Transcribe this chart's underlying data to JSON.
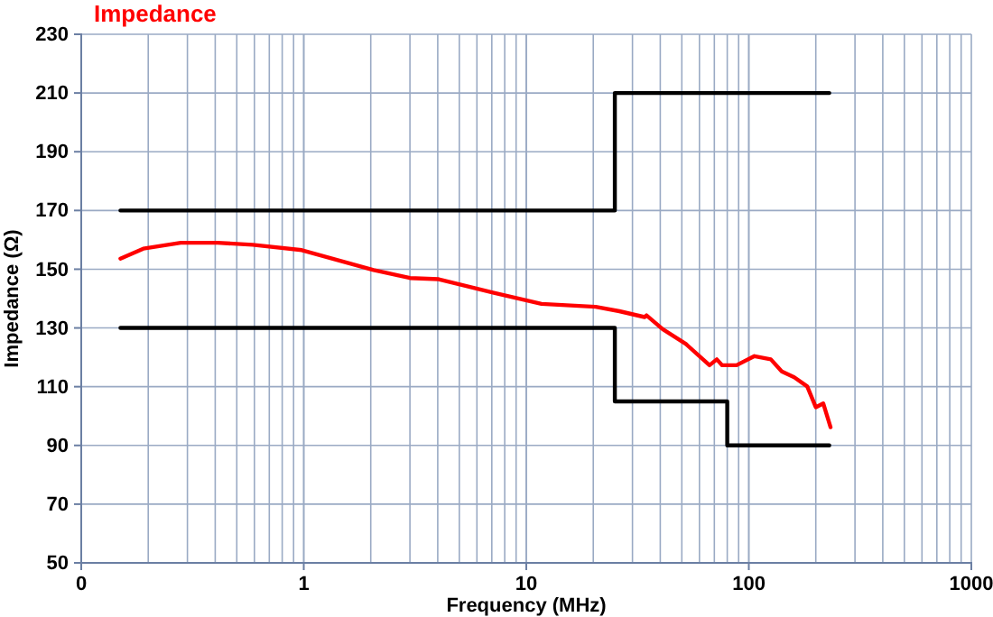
{
  "chart_data": {
    "type": "line",
    "title": "Impedance",
    "xlabel": "Frequency (MHz)",
    "ylabel": "Impedance (Ω)",
    "log": "x",
    "grid": true,
    "marker": "none",
    "line_style": "solid",
    "xlim": [
      0.1,
      1000
    ],
    "xticks": [
      {
        "value": 0.1,
        "label": "0"
      },
      1,
      10,
      100,
      1000
    ],
    "ylim": [
      50,
      230
    ],
    "yticks": [
      50,
      70,
      90,
      110,
      130,
      150,
      170,
      190,
      210,
      230
    ],
    "series": [
      {
        "color": "#ff0000",
        "x": [
          0.15,
          0.19,
          0.28,
          0.41,
          0.59,
          0.98,
          2.06,
          3.0,
          4.04,
          7.08,
          11.7,
          20.5,
          26.2,
          34,
          34.7,
          41,
          52.2,
          66.6,
          71.8,
          75.9,
          88.1,
          106,
          125.6,
          140.6,
          160,
          183,
          200,
          216,
          233
        ],
        "values": [
          153.6,
          157,
          159,
          159,
          158.3,
          156.5,
          149.7,
          147,
          146.6,
          142,
          138.2,
          137.2,
          135.7,
          133.7,
          134.3,
          129.6,
          124.5,
          117.3,
          119.3,
          117.3,
          117.3,
          120.4,
          119.3,
          115.2,
          113.2,
          110.1,
          103,
          104.3,
          96.2
        ]
      },
      {
        "color": "#000000",
        "x": [
          0.15,
          25,
          25,
          230
        ],
        "values": [
          170,
          170,
          210,
          210
        ]
      },
      {
        "color": "#000000",
        "x": [
          0.15,
          25,
          25,
          80,
          80,
          230
        ],
        "values": [
          130,
          130,
          105,
          105,
          90,
          90
        ]
      }
    ]
  }
}
